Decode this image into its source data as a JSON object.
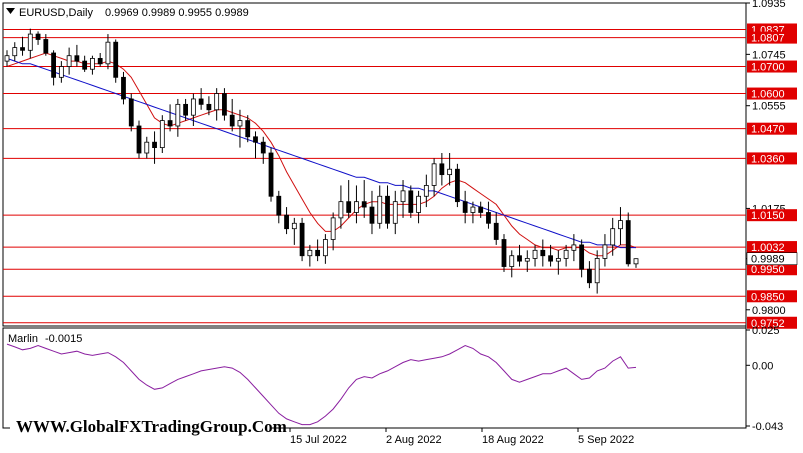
{
  "chart_data": {
    "type": "candlestick",
    "symbol_header": {
      "symbol": "EURUSD,Daily",
      "ohlc": "0.9969 0.9989 0.9955 0.9989"
    },
    "price_axis": {
      "ylim": [
        0.974,
        1.0935
      ],
      "tick_labels": [
        "1.0935",
        "1.0745",
        "1.0555",
        "1.0175",
        "0.9989",
        "0.9800"
      ]
    },
    "x_tick_labels": [
      "15 Jul 2022",
      "2 Aug 2022",
      "18 Aug 2022",
      "5 Sep 2022"
    ],
    "levels": [
      1.0837,
      1.0807,
      1.07,
      1.06,
      1.047,
      1.036,
      1.015,
      1.0032,
      0.995,
      0.985,
      0.9752
    ],
    "level_labels": [
      "1.0837",
      "1.0807",
      "1.0700",
      "1.0600",
      "1.0470",
      "1.0360",
      "1.0150",
      "1.0032",
      "0.9950",
      "0.9850",
      "0.9752"
    ],
    "current_price": 0.9989,
    "current_price_label": "0.9989",
    "candles": [
      [
        1.072,
        1.076,
        1.07,
        1.074
      ],
      [
        1.074,
        1.079,
        1.072,
        1.077
      ],
      [
        1.077,
        1.081,
        1.074,
        1.076
      ],
      [
        1.076,
        1.084,
        1.073,
        1.082
      ],
      [
        1.082,
        1.083,
        1.078,
        1.08
      ],
      [
        1.08,
        1.082,
        1.074,
        1.075
      ],
      [
        1.075,
        1.076,
        1.063,
        1.066
      ],
      [
        1.066,
        1.072,
        1.064,
        1.07
      ],
      [
        1.07,
        1.077,
        1.067,
        1.074
      ],
      [
        1.074,
        1.078,
        1.07,
        1.072
      ],
      [
        1.072,
        1.074,
        1.068,
        1.069
      ],
      [
        1.069,
        1.074,
        1.067,
        1.073
      ],
      [
        1.073,
        1.075,
        1.07,
        1.071
      ],
      [
        1.071,
        1.082,
        1.069,
        1.079
      ],
      [
        1.079,
        1.08,
        1.064,
        1.066
      ],
      [
        1.066,
        1.068,
        1.056,
        1.058
      ],
      [
        1.058,
        1.06,
        1.046,
        1.048
      ],
      [
        1.048,
        1.05,
        1.036,
        1.038
      ],
      [
        1.038,
        1.044,
        1.036,
        1.042
      ],
      [
        1.042,
        1.046,
        1.034,
        1.04
      ],
      [
        1.04,
        1.052,
        1.038,
        1.05
      ],
      [
        1.05,
        1.056,
        1.046,
        1.048
      ],
      [
        1.048,
        1.058,
        1.044,
        1.056
      ],
      [
        1.056,
        1.058,
        1.05,
        1.052
      ],
      [
        1.052,
        1.06,
        1.048,
        1.058
      ],
      [
        1.058,
        1.062,
        1.054,
        1.056
      ],
      [
        1.056,
        1.059,
        1.052,
        1.054
      ],
      [
        1.054,
        1.062,
        1.05,
        1.06
      ],
      [
        1.06,
        1.062,
        1.05,
        1.052
      ],
      [
        1.052,
        1.058,
        1.046,
        1.048
      ],
      [
        1.048,
        1.054,
        1.04,
        1.05
      ],
      [
        1.05,
        1.052,
        1.042,
        1.044
      ],
      [
        1.044,
        1.046,
        1.036,
        1.042
      ],
      [
        1.042,
        1.044,
        1.034,
        1.038
      ],
      [
        1.038,
        1.04,
        1.02,
        1.022
      ],
      [
        1.022,
        1.024,
        1.012,
        1.015
      ],
      [
        1.015,
        1.018,
        1.008,
        1.01
      ],
      [
        1.01,
        1.014,
        1.004,
        1.012
      ],
      [
        1.012,
        1.014,
        0.998,
        1.0
      ],
      [
        1.0,
        1.004,
        0.996,
        1.002
      ],
      [
        1.002,
        1.006,
        0.998,
        1.0
      ],
      [
        1.0,
        1.008,
        0.997,
        1.006
      ],
      [
        1.006,
        1.016,
        1.002,
        1.014
      ],
      [
        1.014,
        1.026,
        1.01,
        1.02
      ],
      [
        1.02,
        1.028,
        1.014,
        1.016
      ],
      [
        1.016,
        1.026,
        1.012,
        1.02
      ],
      [
        1.02,
        1.028,
        1.014,
        1.018
      ],
      [
        1.018,
        1.024,
        1.008,
        1.012
      ],
      [
        1.012,
        1.026,
        1.01,
        1.022
      ],
      [
        1.022,
        1.026,
        1.01,
        1.012
      ],
      [
        1.012,
        1.024,
        1.008,
        1.02
      ],
      [
        1.02,
        1.028,
        1.014,
        1.024
      ],
      [
        1.024,
        1.026,
        1.014,
        1.016
      ],
      [
        1.016,
        1.024,
        1.012,
        1.022
      ],
      [
        1.022,
        1.03,
        1.018,
        1.026
      ],
      [
        1.026,
        1.036,
        1.022,
        1.034
      ],
      [
        1.034,
        1.038,
        1.026,
        1.03
      ],
      [
        1.03,
        1.038,
        1.026,
        1.032
      ],
      [
        1.032,
        1.034,
        1.018,
        1.02
      ],
      [
        1.02,
        1.024,
        1.012,
        1.016
      ],
      [
        1.016,
        1.02,
        1.012,
        1.018
      ],
      [
        1.018,
        1.02,
        1.014,
        1.016
      ],
      [
        1.016,
        1.02,
        1.01,
        1.012
      ],
      [
        1.012,
        1.016,
        1.004,
        1.006
      ],
      [
        1.006,
        1.008,
        0.994,
        0.996
      ],
      [
        0.996,
        1.002,
        0.992,
        1.0
      ],
      [
        1.0,
        1.004,
        0.996,
        0.998
      ],
      [
        0.998,
        1.002,
        0.994,
        0.999
      ],
      [
        0.999,
        1.004,
        0.996,
        1.002
      ],
      [
        1.002,
        1.006,
        0.996,
        1.0
      ],
      [
        1.0,
        1.004,
        0.996,
        0.998
      ],
      [
        0.998,
        1.002,
        0.993,
        0.999
      ],
      [
        0.999,
        1.004,
        0.996,
        1.002
      ],
      [
        1.002,
        1.008,
        0.998,
        1.004
      ],
      [
        1.004,
        1.006,
        0.992,
        0.995
      ],
      [
        0.995,
        0.998,
        0.988,
        0.99
      ],
      [
        0.99,
        1.002,
        0.986,
        0.999
      ],
      [
        0.999,
        1.008,
        0.996,
        1.004
      ],
      [
        1.004,
        1.014,
        1.0,
        1.01
      ],
      [
        1.01,
        1.018,
        1.004,
        1.013
      ],
      [
        1.013,
        1.016,
        0.996,
        0.997
      ],
      [
        0.997,
        0.999,
        0.9955,
        0.9989
      ]
    ],
    "series": [
      {
        "name": "",
        "color": "#d01010",
        "values": [
          1.07,
          1.071,
          1.072,
          1.073,
          1.074,
          1.075,
          1.074,
          1.073,
          1.072,
          1.072,
          1.071,
          1.071,
          1.071,
          1.072,
          1.071,
          1.069,
          1.066,
          1.061,
          1.056,
          1.051,
          1.049,
          1.048,
          1.049,
          1.05,
          1.051,
          1.052,
          1.053,
          1.054,
          1.054,
          1.053,
          1.052,
          1.051,
          1.049,
          1.046,
          1.042,
          1.037,
          1.031,
          1.026,
          1.021,
          1.016,
          1.012,
          1.009,
          1.009,
          1.011,
          1.014,
          1.017,
          1.019,
          1.02,
          1.02,
          1.019,
          1.019,
          1.019,
          1.019,
          1.019,
          1.02,
          1.022,
          1.025,
          1.027,
          1.028,
          1.027,
          1.025,
          1.023,
          1.021,
          1.019,
          1.015,
          1.011,
          1.008,
          1.006,
          1.004,
          1.003,
          1.003,
          1.002,
          1.003,
          1.003,
          1.003,
          1.001,
          1.0,
          1.0,
          1.002,
          1.004,
          1.004,
          1.003
        ]
      },
      {
        "name": "",
        "color": "#1010c8",
        "values": [
          1.073,
          1.072,
          1.071,
          1.071,
          1.07,
          1.069,
          1.068,
          1.067,
          1.066,
          1.065,
          1.064,
          1.063,
          1.062,
          1.061,
          1.06,
          1.059,
          1.058,
          1.057,
          1.056,
          1.055,
          1.054,
          1.053,
          1.052,
          1.051,
          1.05,
          1.049,
          1.048,
          1.047,
          1.046,
          1.045,
          1.044,
          1.043,
          1.042,
          1.041,
          1.04,
          1.039,
          1.038,
          1.037,
          1.036,
          1.035,
          1.034,
          1.033,
          1.032,
          1.031,
          1.03,
          1.029,
          1.029,
          1.028,
          1.027,
          1.027,
          1.026,
          1.026,
          1.025,
          1.025,
          1.024,
          1.024,
          1.023,
          1.022,
          1.021,
          1.02,
          1.019,
          1.018,
          1.017,
          1.016,
          1.015,
          1.014,
          1.013,
          1.012,
          1.011,
          1.01,
          1.009,
          1.008,
          1.007,
          1.006,
          1.005,
          1.005,
          1.004,
          1.004,
          1.004,
          1.003,
          1.003,
          1.003
        ]
      }
    ],
    "indicator": {
      "name": "Marlin",
      "value_label": "-0.0015",
      "ylim": [
        -0.043,
        0.025
      ],
      "tick_labels": [
        "0.025",
        "0.00",
        "-0.043"
      ],
      "color": "#8a1fa0",
      "values": [
        0.015,
        0.013,
        0.011,
        0.012,
        0.014,
        0.012,
        0.01,
        0.008,
        0.009,
        0.01,
        0.008,
        0.007,
        0.008,
        0.009,
        0.006,
        0.002,
        -0.004,
        -0.01,
        -0.014,
        -0.017,
        -0.016,
        -0.013,
        -0.01,
        -0.008,
        -0.006,
        -0.004,
        -0.003,
        -0.002,
        -0.001,
        -0.002,
        -0.005,
        -0.01,
        -0.016,
        -0.022,
        -0.028,
        -0.034,
        -0.038,
        -0.04,
        -0.042,
        -0.042,
        -0.04,
        -0.036,
        -0.031,
        -0.024,
        -0.016,
        -0.01,
        -0.008,
        -0.009,
        -0.006,
        -0.004,
        -0.001,
        0.002,
        0.004,
        0.003,
        0.004,
        0.005,
        0.006,
        0.008,
        0.011,
        0.014,
        0.012,
        0.008,
        0.006,
        0.002,
        -0.004,
        -0.01,
        -0.012,
        -0.01,
        -0.008,
        -0.006,
        -0.006,
        -0.004,
        -0.002,
        -0.006,
        -0.01,
        -0.009,
        -0.004,
        -0.002,
        0.003,
        0.006,
        -0.002,
        -0.0015
      ]
    }
  },
  "watermark": "WWW.GlobalFXTradingGroup.Com"
}
